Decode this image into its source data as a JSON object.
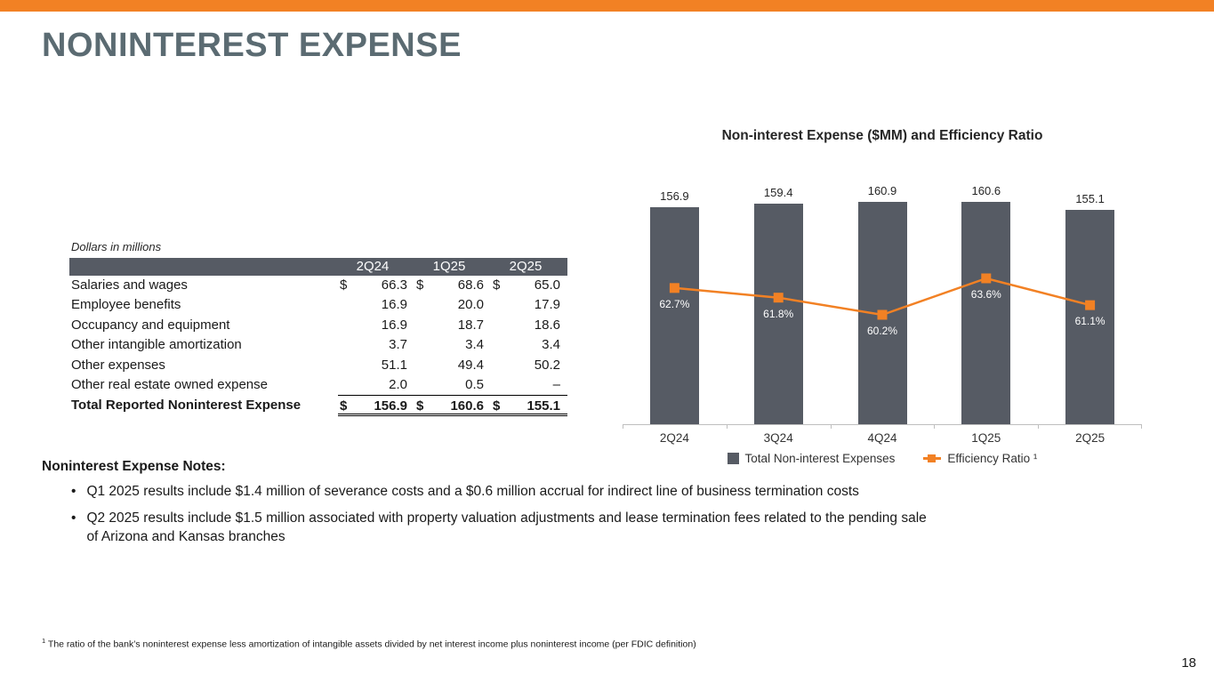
{
  "slide": {
    "title": "NONINTEREST EXPENSE",
    "page_number": "18",
    "footnote_marker": "1",
    "footnote": "The ratio of the bank’s noninterest expense less amortization of intangible assets divided by net interest income plus noninterest income (per FDIC definition)"
  },
  "colors": {
    "accent_orange": "#F28124",
    "dark_gray": "#565B64",
    "title_slate": "#5B6B72",
    "axis_gray": "#BFBFBF"
  },
  "table": {
    "caption": "Dollars in millions",
    "columns": [
      "2Q24",
      "1Q25",
      "2Q25"
    ],
    "rows": [
      {
        "label": "Salaries and wages",
        "dollars": [
          "$",
          "$",
          "$"
        ],
        "values": [
          "66.3",
          "68.6",
          "65.0"
        ]
      },
      {
        "label": "Employee benefits",
        "values": [
          "16.9",
          "20.0",
          "17.9"
        ]
      },
      {
        "label": "Occupancy and equipment",
        "values": [
          "16.9",
          "18.7",
          "18.6"
        ]
      },
      {
        "label": "Other intangible amortization",
        "values": [
          "3.7",
          "3.4",
          "3.4"
        ]
      },
      {
        "label": "Other expenses",
        "values": [
          "51.1",
          "49.4",
          "50.2"
        ]
      },
      {
        "label": "Other real estate owned expense",
        "values": [
          "2.0",
          "0.5",
          "–"
        ]
      }
    ],
    "total": {
      "label": "Total Reported Noninterest Expense",
      "dollars": [
        "$",
        "$",
        "$"
      ],
      "values": [
        "156.9",
        "160.6",
        "155.1"
      ]
    }
  },
  "chart_data": {
    "type": "bar",
    "combo": "bar+line",
    "title": "Non-interest Expense ($MM) and Efficiency Ratio",
    "categories": [
      "2Q24",
      "3Q24",
      "4Q24",
      "1Q25",
      "2Q25"
    ],
    "series": [
      {
        "name": "Total Non-interest Expenses",
        "type": "bar",
        "color": "#565B64",
        "values": [
          156.9,
          159.4,
          160.9,
          160.6,
          155.1
        ],
        "labels": [
          "156.9",
          "159.4",
          "160.9",
          "160.6",
          "155.1"
        ]
      },
      {
        "name": "Efficiency Ratio ¹",
        "type": "line",
        "color": "#F28124",
        "values": [
          62.7,
          61.8,
          60.2,
          63.6,
          61.1
        ],
        "labels": [
          "62.7%",
          "61.8%",
          "60.2%",
          "63.6%",
          "61.1%"
        ]
      }
    ],
    "ylabel": "",
    "xlabel": "",
    "legend_position": "bottom",
    "gridlines": false,
    "bar_axis_baseline": 0
  },
  "notes": {
    "heading": "Noninterest Expense Notes:",
    "bullet_glyph": "•",
    "bullets": [
      "Q1 2025 results include $1.4 million of severance costs and a $0.6 million accrual for indirect line of business termination costs",
      "Q2 2025 results include $1.5 million associated with property valuation adjustments and lease termination fees related to the pending sale of Arizona and Kansas branches"
    ]
  }
}
